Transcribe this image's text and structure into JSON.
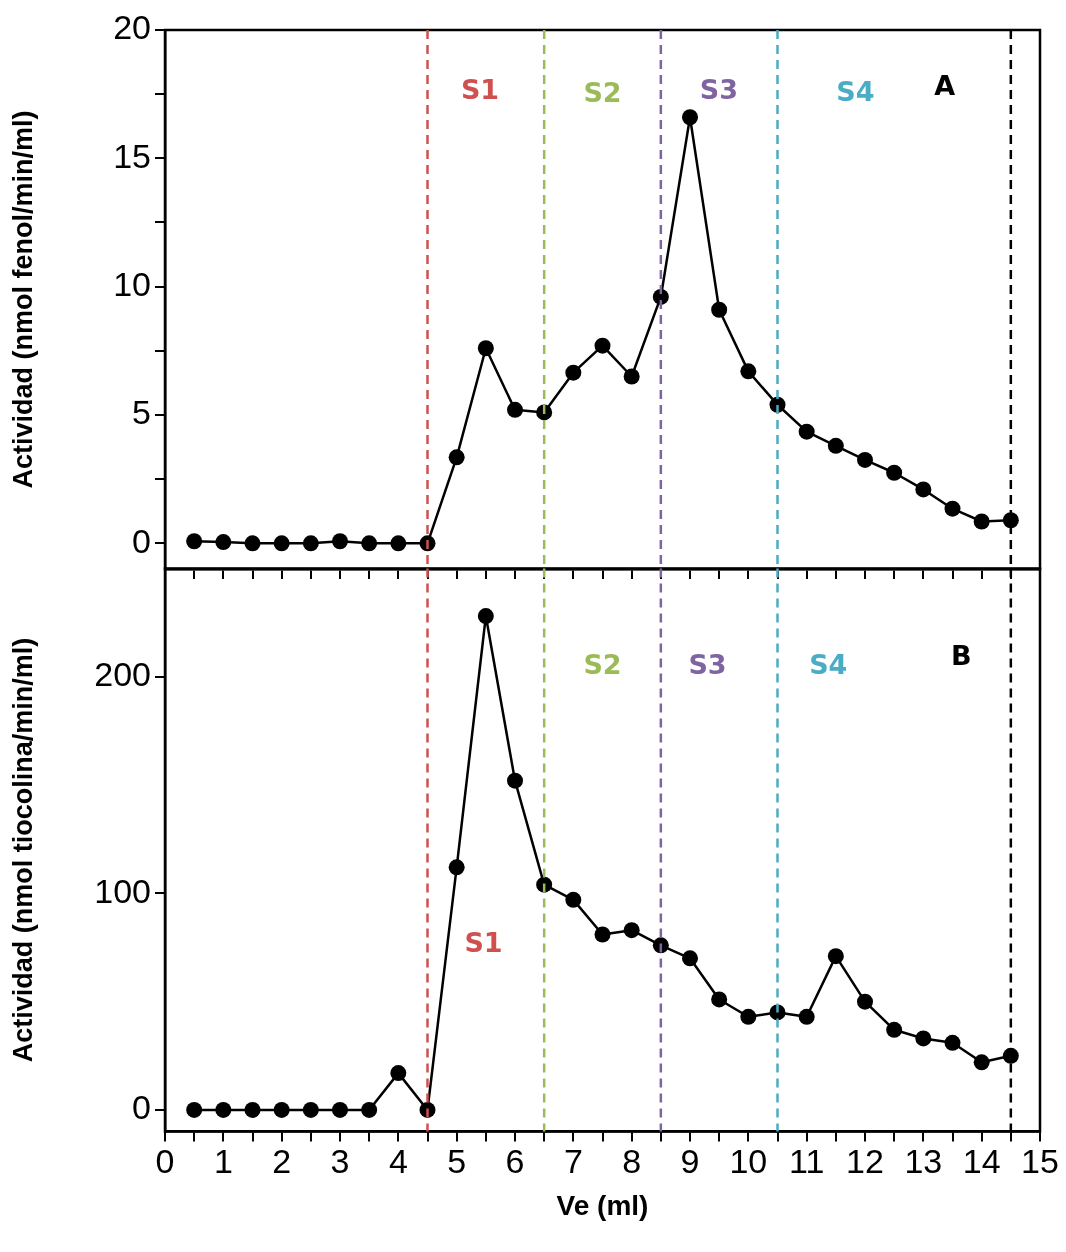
{
  "chart_data": [
    {
      "type": "line",
      "ylabel": "Actividad (nmol fenol/min/ml)",
      "x": [
        0.5,
        1,
        1.5,
        2,
        2.5,
        3,
        3.5,
        4,
        4.5,
        5,
        5.5,
        6,
        6.5,
        7,
        7.5,
        8,
        8.5,
        9,
        9.5,
        10,
        10.5,
        11,
        11.5,
        12,
        12.5,
        13,
        13.5,
        14,
        14.5
      ],
      "series": [
        {
          "color": "#000000",
          "values": [
            0.08,
            0.05,
            0,
            0,
            0,
            0.08,
            0,
            0,
            0,
            3.35,
            7.6,
            5.2,
            5.1,
            6.65,
            7.7,
            6.5,
            9.6,
            16.6,
            9.1,
            6.7,
            5.4,
            4.35,
            3.8,
            3.25,
            2.75,
            2.1,
            1.35,
            0.85,
            0.9
          ]
        }
      ],
      "xlim": [
        0,
        15
      ],
      "xticks": [
        0,
        {
          "value": 0.5,
          "label": null
        },
        1,
        {
          "value": 1.5,
          "label": null
        },
        2,
        {
          "value": 2.5,
          "label": null
        },
        3,
        {
          "value": 3.5,
          "label": null
        },
        4,
        {
          "value": 4.5,
          "label": null
        },
        5,
        {
          "value": 5.5,
          "label": null
        },
        6,
        {
          "value": 6.5,
          "label": null
        },
        7,
        {
          "value": 7.5,
          "label": null
        },
        8,
        {
          "value": 8.5,
          "label": null
        },
        9,
        {
          "value": 9.5,
          "label": null
        },
        10,
        {
          "value": 10.5,
          "label": null
        },
        11,
        {
          "value": 11.5,
          "label": null
        },
        12,
        {
          "value": 12.5,
          "label": null
        },
        13,
        {
          "value": 13.5,
          "label": null
        },
        14,
        {
          "value": 14.5,
          "label": null
        },
        15
      ],
      "ylim": [
        -1,
        20
      ],
      "yticks": [
        0,
        {
          "value": 2.5,
          "label": null
        },
        5,
        {
          "value": 7.5,
          "label": null
        },
        10,
        {
          "value": 12.5,
          "label": null
        },
        15,
        {
          "value": 17.5,
          "label": null
        },
        20
      ],
      "tick_labels": "y",
      "grid": false,
      "legend": false,
      "marker": "circle",
      "line_style": "solid",
      "ref_lines": [
        {
          "axis": "x",
          "value": 4.5,
          "color": "#d0504f",
          "line_style": "dashed"
        },
        {
          "axis": "x",
          "value": 6.5,
          "color": "#9bbb59",
          "line_style": "dashed"
        },
        {
          "axis": "x",
          "value": 8.5,
          "color": "#8064a2",
          "line_style": "dashed"
        },
        {
          "axis": "x",
          "value": 10.5,
          "color": "#4bacc6",
          "line_style": "dashed"
        },
        {
          "axis": "x",
          "value": 14.5,
          "color": "#000000",
          "line_style": "dashed"
        }
      ],
      "annotations": [
        "S1",
        "S2",
        "S3",
        "S4",
        "A"
      ]
    },
    {
      "type": "line",
      "xlabel": "Ve (ml)",
      "ylabel": "Actividad (nmol tiocolina/min/ml)",
      "x": [
        0.5,
        1,
        1.5,
        2,
        2.5,
        3,
        3.5,
        4,
        4.5,
        5,
        5.5,
        6,
        6.5,
        7,
        7.5,
        8,
        8.5,
        9,
        9.5,
        10,
        10.5,
        11,
        11.5,
        12,
        12.5,
        13,
        13.5,
        14,
        14.5
      ],
      "series": [
        {
          "color": "#000000",
          "values": [
            0,
            0,
            0,
            0,
            0,
            0,
            0,
            17,
            0,
            112,
            228,
            152,
            104,
            97,
            81,
            83,
            76,
            70,
            51,
            43,
            45,
            43,
            71,
            50,
            37,
            33,
            31,
            22,
            25
          ]
        }
      ],
      "xlim": [
        0,
        15
      ],
      "xticks": [
        0,
        {
          "value": 0.5,
          "label": null
        },
        1,
        {
          "value": 1.5,
          "label": null
        },
        2,
        {
          "value": 2.5,
          "label": null
        },
        3,
        {
          "value": 3.5,
          "label": null
        },
        4,
        {
          "value": 4.5,
          "label": null
        },
        5,
        {
          "value": 5.5,
          "label": null
        },
        6,
        {
          "value": 6.5,
          "label": null
        },
        7,
        {
          "value": 7.5,
          "label": null
        },
        8,
        {
          "value": 8.5,
          "label": null
        },
        9,
        {
          "value": 9.5,
          "label": null
        },
        10,
        {
          "value": 10.5,
          "label": null
        },
        11,
        {
          "value": 11.5,
          "label": null
        },
        12,
        {
          "value": 12.5,
          "label": null
        },
        13,
        {
          "value": 13.5,
          "label": null
        },
        14,
        {
          "value": 14.5,
          "label": null
        },
        15
      ],
      "ylim": [
        -10,
        250
      ],
      "yticks": [
        0,
        100,
        200
      ],
      "grid": false,
      "legend": false,
      "marker": "circle",
      "line_style": "solid",
      "ref_lines": [
        {
          "axis": "x",
          "value": 4.5,
          "color": "#d0504f",
          "line_style": "dashed"
        },
        {
          "axis": "x",
          "value": 6.5,
          "color": "#9bbb59",
          "line_style": "dashed"
        },
        {
          "axis": "x",
          "value": 8.5,
          "color": "#8064a2",
          "line_style": "dashed"
        },
        {
          "axis": "x",
          "value": 10.5,
          "color": "#4bacc6",
          "line_style": "dashed"
        },
        {
          "axis": "x",
          "value": 14.5,
          "color": "#000000",
          "line_style": "dashed"
        }
      ],
      "annotations": [
        "S1",
        "S2",
        "S3",
        "S4",
        "B"
      ]
    }
  ]
}
